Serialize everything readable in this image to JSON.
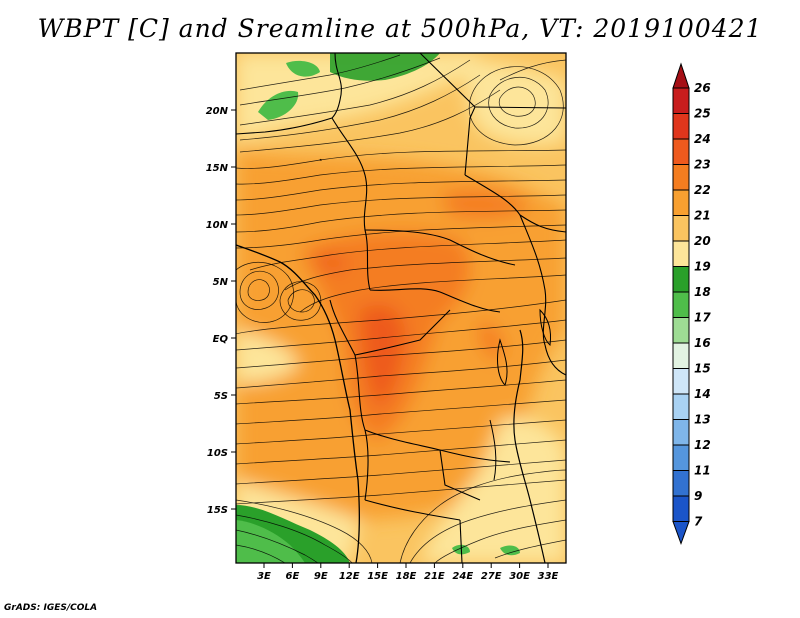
{
  "title": "WBPT [C] and Sreamline at 500hPa, VT: 2019100421",
  "credit": "GrADS: IGES/COLA",
  "map": {
    "lat_ticks": [
      "20N",
      "15N",
      "10N",
      "5N",
      "EQ",
      "5S",
      "10S",
      "15S"
    ],
    "lon_ticks": [
      "3E",
      "6E",
      "9E",
      "12E",
      "15E",
      "18E",
      "21E",
      "24E",
      "27E",
      "30E",
      "33E"
    ]
  },
  "colorbar": {
    "labels": [
      "26",
      "25",
      "24",
      "23",
      "22",
      "21",
      "20",
      "19",
      "18",
      "17",
      "16",
      "15",
      "14",
      "13",
      "12",
      "11",
      "9",
      "7"
    ],
    "colors": [
      "#a50f15",
      "#c81d1d",
      "#e0361c",
      "#ee5a1e",
      "#f47d20",
      "#f8a030",
      "#fac460",
      "#fde59a",
      "#2aa02a",
      "#4fbd4a",
      "#9edc94",
      "#e2f3e2",
      "#cfe6f8",
      "#a9d2f3",
      "#7fb6ea",
      "#5596dd",
      "#3272d1",
      "#1b55c9"
    ]
  }
}
